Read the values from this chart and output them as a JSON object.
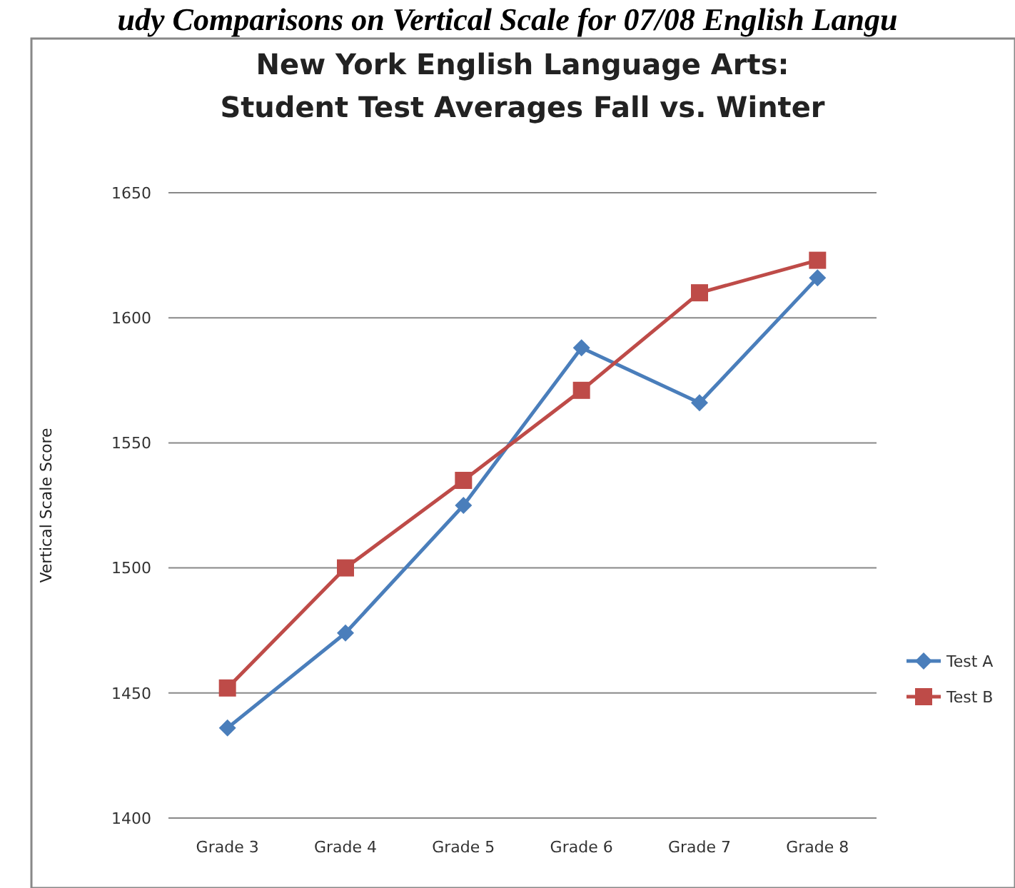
{
  "chart_data": {
    "type": "line",
    "title": "New York English Language Arts:\nStudent Test Averages Fall vs. Winter",
    "ylabel": "Vertical Scale Score",
    "annotations": [
      "udy Comparisons on Vertical Scale for 07/08 English Langu"
    ],
    "categories": [
      "Grade 3",
      "Grade 4",
      "Grade 5",
      "Grade 6",
      "Grade 7",
      "Grade 8"
    ],
    "series": [
      {
        "name": "Test A",
        "color": "#4a7ebb",
        "marker": "diamond",
        "values": [
          1436,
          1474,
          1525,
          1588,
          1566,
          1616
        ]
      },
      {
        "name": "Test B",
        "color": "#be4b48",
        "marker": "square",
        "values": [
          1452,
          1500,
          1535,
          1571,
          1610,
          1623
        ]
      }
    ],
    "ylim": [
      1400,
      1650
    ],
    "yticks": [
      1400,
      1450,
      1500,
      1550,
      1600,
      1650
    ],
    "grid": "y",
    "legend": "right",
    "line_style": "solid"
  }
}
